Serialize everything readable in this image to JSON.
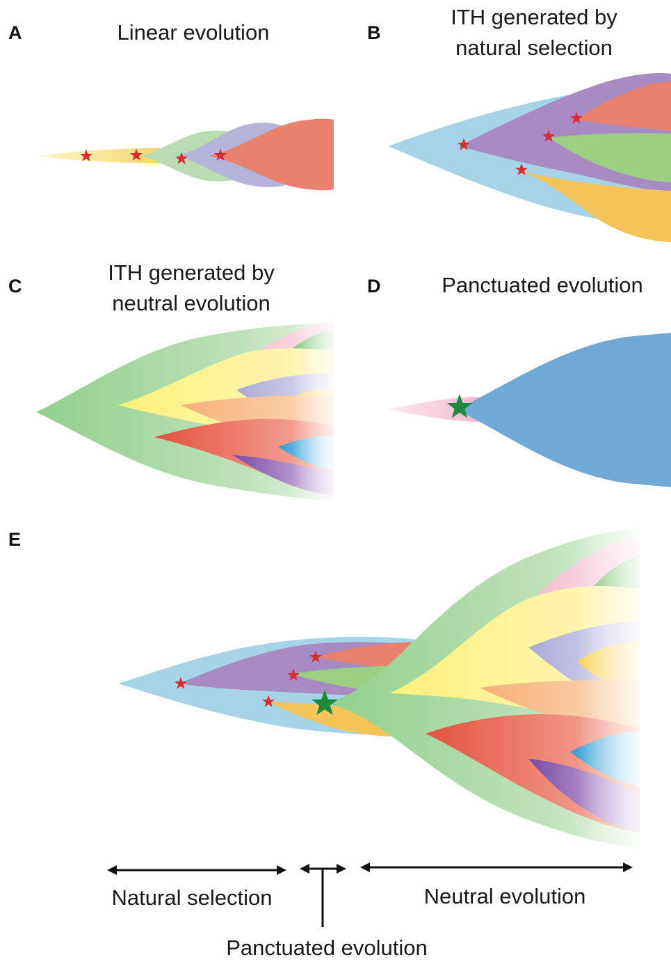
{
  "panels": {
    "a": {
      "letter": "A",
      "title": "Linear evolution"
    },
    "b": {
      "letter": "B",
      "title_line1": "ITH generated by",
      "title_line2": "natural selection"
    },
    "c": {
      "letter": "C",
      "title_line1": "ITH generated by",
      "title_line2": "neutral evolution"
    },
    "d": {
      "letter": "D",
      "title": "Panctuated evolution"
    },
    "e": {
      "letter": "E"
    }
  },
  "timeline": {
    "natural_selection": "Natural selection",
    "neutral_evolution": "Neutral evolution",
    "punctuated_evolution": "Panctuated evolution"
  },
  "colors": {
    "blue_clone": "#a6d3e8",
    "purple_clone": "#a98bc4",
    "green_clone": "#b5dbb0",
    "salmon_clone": "#e8826e",
    "yellow_clone": "#fff29a",
    "gold_clone": "#f2c45a",
    "pink_clone": "#f5c4d4",
    "lavender_clone": "#b7b6dc",
    "punctuated_blue": "#72a9d4",
    "driver_star": "#d62f2f",
    "punctuation_star": "#1e8a3c"
  }
}
